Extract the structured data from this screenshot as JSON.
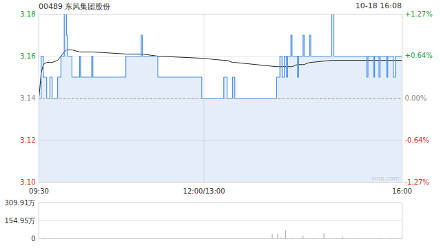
{
  "chart_data": [
    {
      "type": "line",
      "title": "00489 东风集团股份",
      "subtitle": "10-18 16:08",
      "annotation": "sina.com",
      "x": [
        0,
        2,
        4,
        7,
        10,
        12,
        17,
        20,
        23,
        25,
        26,
        30,
        37,
        38,
        48,
        49,
        79,
        93,
        94,
        108,
        148,
        168,
        171,
        176,
        178,
        216,
        219,
        221,
        223,
        225,
        226,
        229,
        230,
        235,
        236,
        240,
        241,
        246,
        247,
        266,
        268,
        298,
        299,
        304,
        305,
        309,
        310,
        316,
        317,
        322,
        324,
        330
      ],
      "series": [
        {
          "color": "#4a8fe7",
          "values": [
            3.14,
            3.16,
            3.15,
            3.14,
            3.15,
            3.14,
            3.15,
            3.16,
            3.18,
            3.17,
            3.16,
            3.15,
            3.16,
            3.15,
            3.16,
            3.15,
            3.16,
            3.17,
            3.16,
            3.15,
            3.14,
            3.15,
            3.14,
            3.15,
            3.14,
            3.15,
            3.16,
            3.15,
            3.16,
            3.15,
            3.16,
            3.17,
            3.16,
            3.15,
            3.16,
            3.17,
            3.16,
            3.17,
            3.16,
            3.18,
            3.16,
            3.15,
            3.16,
            3.15,
            3.16,
            3.15,
            3.16,
            3.15,
            3.16,
            3.15,
            3.16,
            3.16
          ]
        },
        {
          "color": "#222222",
          "values": [
            3.14,
            3.152,
            3.156,
            3.157,
            3.157,
            3.157,
            3.158,
            3.16,
            3.162,
            3.163,
            3.163,
            3.163,
            3.162,
            3.162,
            3.162,
            3.162,
            3.161,
            3.161,
            3.161,
            3.16,
            3.159,
            3.158,
            3.158,
            3.157,
            3.157,
            3.155,
            3.155,
            3.155,
            3.155,
            3.155,
            3.155,
            3.155,
            3.155,
            3.156,
            3.156,
            3.156,
            3.156,
            3.157,
            3.157,
            3.158,
            3.158,
            3.158,
            3.158,
            3.158,
            3.158,
            3.158,
            3.158,
            3.158,
            3.158,
            3.158,
            3.158,
            3.158
          ]
        }
      ],
      "xlim": [
        0,
        330
      ],
      "xticks": [
        {
          "value": 0,
          "label": "09:30"
        },
        {
          "value": 150,
          "label": "12:00/13:00"
        },
        {
          "value": 330,
          "label": "16:00"
        }
      ],
      "ylim": [
        3.1,
        3.18
      ],
      "yticks": [
        {
          "value": 3.1,
          "label": "3.10"
        },
        3.12,
        3.14,
        3.16,
        3.18
      ],
      "y2lim": [
        -1.27,
        1.27
      ],
      "y2ticks": [
        {
          "value": 1.27,
          "label": "+1.27%"
        },
        {
          "value": 0.64,
          "label": "+0.64%"
        },
        {
          "value": 0,
          "label": "0.00%"
        },
        {
          "value": -0.64,
          "label": "-0.64%"
        },
        {
          "value": -1.27,
          "label": "-1.27%"
        }
      ],
      "previous_close": 3.14,
      "grid": true
    },
    {
      "type": "bar",
      "color": "#999999",
      "x": [
        0,
        5,
        10,
        20,
        30,
        40,
        50,
        60,
        80,
        100,
        120,
        140,
        160,
        180,
        200,
        212,
        217,
        220,
        224,
        230,
        240,
        250,
        259,
        270,
        276,
        290,
        300,
        310,
        320,
        330
      ],
      "values": [
        15,
        6,
        5,
        4,
        4,
        3,
        3,
        4,
        3,
        3,
        2,
        3,
        2,
        2,
        3,
        35,
        40,
        8,
        70,
        6,
        25,
        5,
        45,
        6,
        15,
        5,
        4,
        6,
        5,
        8
      ],
      "xlim": [
        0,
        330
      ],
      "ylim": [
        0,
        309.91
      ],
      "yticks": [
        0,
        {
          "value": 154.95,
          "label": "154.95万"
        },
        {
          "value": 309.91,
          "label": "309.91万"
        }
      ]
    }
  ]
}
